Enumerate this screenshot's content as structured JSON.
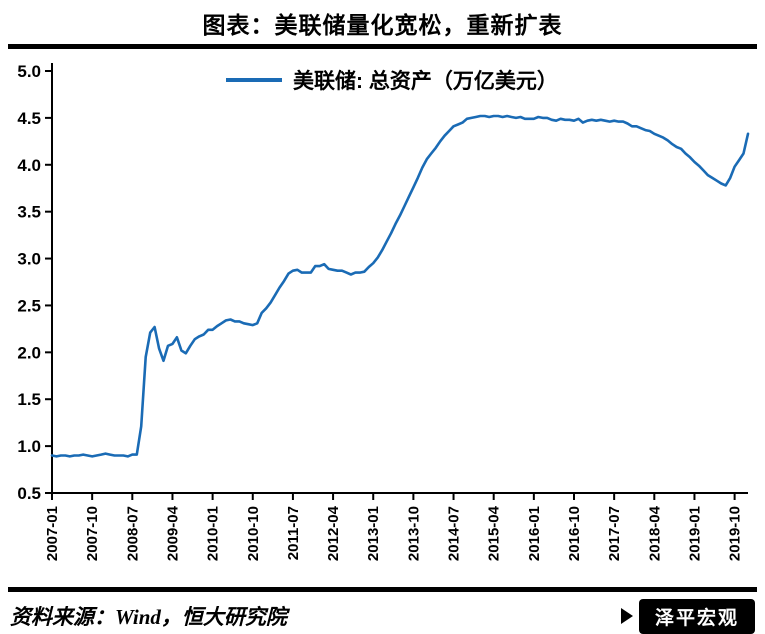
{
  "page": {
    "title": "图表：美联储量化宽松，重新扩表",
    "source": "资料来源：Wind，恒大研究院",
    "watermark": "泽平宏观"
  },
  "legend": {
    "label": "美联储: 总资产（万亿美元）"
  },
  "colors": {
    "line": "#1a6bb5",
    "axis": "#000000",
    "text": "#000000"
  },
  "chart_data": {
    "type": "line",
    "title": "图表：美联储量化宽松，重新扩表",
    "series_name": "美联储: 总资产（万亿美元）",
    "legend_position": "top-center",
    "grid": false,
    "ylim": [
      0.5,
      5.0
    ],
    "yticks": [
      0.5,
      1.0,
      1.5,
      2.0,
      2.5,
      3.0,
      3.5,
      4.0,
      4.5,
      5.0
    ],
    "x_start": "2007-01",
    "x_freq": "monthly",
    "xtick_labels": [
      "2007-01",
      "2007-10",
      "2008-07",
      "2009-04",
      "2010-01",
      "2010-10",
      "2011-07",
      "2012-04",
      "2013-01",
      "2013-10",
      "2014-07",
      "2015-04",
      "2016-01",
      "2016-10",
      "2017-07",
      "2018-04",
      "2019-01",
      "2019-10"
    ],
    "values": [
      0.9,
      0.89,
      0.9,
      0.9,
      0.89,
      0.9,
      0.9,
      0.91,
      0.9,
      0.89,
      0.9,
      0.91,
      0.92,
      0.91,
      0.9,
      0.9,
      0.9,
      0.89,
      0.91,
      0.91,
      1.21,
      1.95,
      2.21,
      2.27,
      2.04,
      1.91,
      2.07,
      2.09,
      2.16,
      2.02,
      1.99,
      2.07,
      2.14,
      2.17,
      2.19,
      2.24,
      2.24,
      2.28,
      2.31,
      2.34,
      2.35,
      2.33,
      2.33,
      2.31,
      2.3,
      2.29,
      2.31,
      2.42,
      2.47,
      2.53,
      2.61,
      2.69,
      2.76,
      2.84,
      2.87,
      2.88,
      2.85,
      2.85,
      2.85,
      2.92,
      2.92,
      2.94,
      2.89,
      2.88,
      2.87,
      2.87,
      2.85,
      2.83,
      2.85,
      2.85,
      2.86,
      2.91,
      2.95,
      3.01,
      3.09,
      3.18,
      3.27,
      3.37,
      3.46,
      3.56,
      3.66,
      3.76,
      3.86,
      3.97,
      4.06,
      4.12,
      4.18,
      4.25,
      4.31,
      4.36,
      4.41,
      4.43,
      4.45,
      4.49,
      4.5,
      4.51,
      4.52,
      4.52,
      4.51,
      4.52,
      4.52,
      4.51,
      4.52,
      4.51,
      4.5,
      4.51,
      4.49,
      4.49,
      4.49,
      4.51,
      4.5,
      4.5,
      4.48,
      4.47,
      4.49,
      4.48,
      4.48,
      4.47,
      4.49,
      4.45,
      4.47,
      4.48,
      4.47,
      4.48,
      4.47,
      4.46,
      4.47,
      4.46,
      4.46,
      4.44,
      4.41,
      4.41,
      4.39,
      4.37,
      4.36,
      4.33,
      4.31,
      4.29,
      4.26,
      4.22,
      4.19,
      4.17,
      4.12,
      4.08,
      4.03,
      3.99,
      3.94,
      3.89,
      3.86,
      3.83,
      3.8,
      3.78,
      3.86,
      3.98,
      4.05,
      4.12,
      4.33
    ]
  }
}
